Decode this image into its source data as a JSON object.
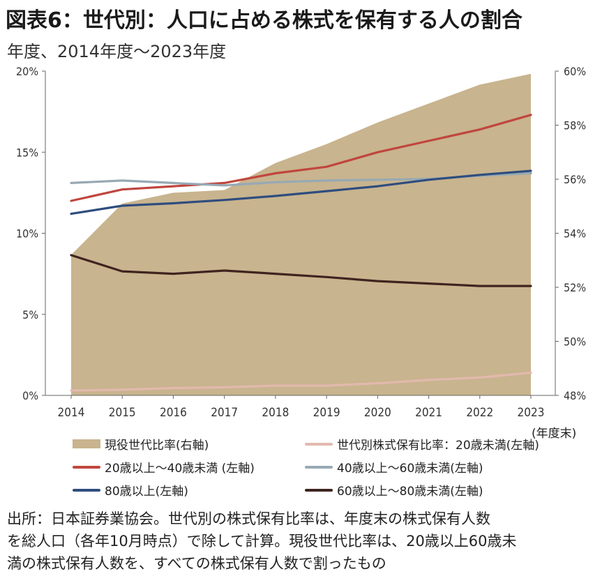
{
  "title": "図表6：世代別：人口に占める株式を保有する人の割合",
  "subtitle": "年度、2014年度～2023年度",
  "unit_note": "(年度末)",
  "source_lines": [
    "出所：日本証券業協会。世代別の株式保有比率は、年度末の株式保有人数",
    "を総人口（各年10月時点）で除して計算。現役世代比率は、20歳以上60歳未",
    "満の株式保有人数を、すべての株式保有人数で割ったもの"
  ],
  "chart_data": {
    "type": "area",
    "categories": [
      "2014",
      "2015",
      "2016",
      "2017",
      "2018",
      "2019",
      "2020",
      "2021",
      "2022",
      "2023"
    ],
    "left_axis": {
      "ylim": [
        0,
        20
      ],
      "ticks": [
        "0%",
        "5%",
        "10%",
        "15%",
        "20%"
      ],
      "tick_values": [
        0,
        5,
        10,
        15,
        20
      ]
    },
    "right_axis": {
      "ylim": [
        48,
        60
      ],
      "ticks": [
        "48%",
        "50%",
        "52%",
        "54%",
        "56%",
        "58%",
        "60%"
      ],
      "tick_values": [
        48,
        50,
        52,
        54,
        56,
        58,
        60
      ]
    },
    "series": [
      {
        "name": "現役世代比率(右軸)",
        "axis": "right",
        "kind": "area",
        "color": "#c8b48e",
        "values": [
          53.2,
          55.1,
          55.5,
          55.6,
          56.6,
          57.3,
          58.1,
          58.8,
          59.5,
          59.9
        ]
      },
      {
        "name": "世代別株式保有比率：20歳未満(左軸)",
        "axis": "left",
        "kind": "line",
        "color": "#e2b9ae",
        "values": [
          0.3,
          0.35,
          0.45,
          0.5,
          0.6,
          0.6,
          0.75,
          0.95,
          1.1,
          1.4
        ]
      },
      {
        "name": "20歳以上～40歳未満 (左軸)",
        "axis": "left",
        "kind": "line",
        "color": "#c0463e",
        "values": [
          12.0,
          12.7,
          12.9,
          13.1,
          13.7,
          14.1,
          15.0,
          15.7,
          16.4,
          17.3
        ]
      },
      {
        "name": "40歳以上～60歳未満(左軸)",
        "axis": "left",
        "kind": "line",
        "color": "#97a9b4",
        "values": [
          13.1,
          13.25,
          13.1,
          12.95,
          13.15,
          13.25,
          13.3,
          13.35,
          13.55,
          13.7
        ]
      },
      {
        "name": "80歳以上(左軸)",
        "axis": "left",
        "kind": "line",
        "color": "#2f4d7e",
        "values": [
          11.2,
          11.7,
          11.85,
          12.05,
          12.3,
          12.6,
          12.9,
          13.3,
          13.6,
          13.85
        ]
      },
      {
        "name": "60歳以上～80歳未満(左軸)",
        "axis": "left",
        "kind": "line",
        "color": "#3f2420",
        "values": [
          8.65,
          7.65,
          7.5,
          7.7,
          7.5,
          7.3,
          7.05,
          6.9,
          6.75,
          6.75
        ]
      }
    ]
  }
}
